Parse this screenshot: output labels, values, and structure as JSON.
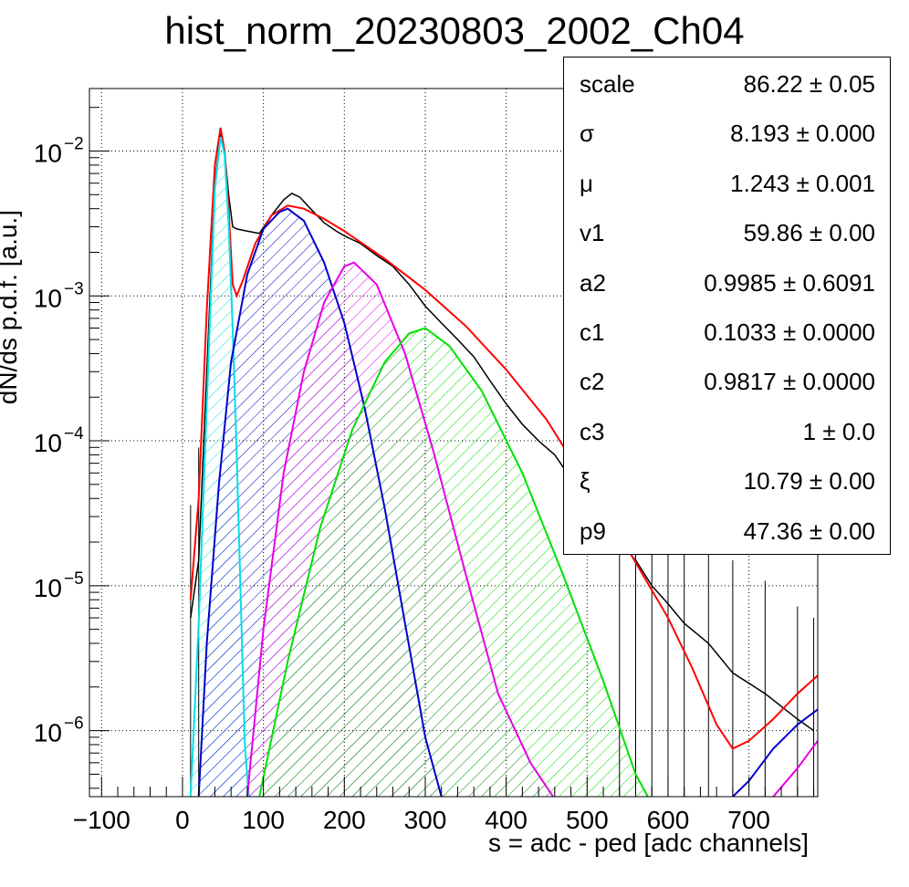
{
  "chart_data": {
    "type": "line",
    "title": "hist_norm_20230803_2002_Ch04",
    "xlabel": "s = adc - ped [adc channels]",
    "ylabel": "dN/ds p.d.f. [a.u.]",
    "xlim": [
      -115,
      785
    ],
    "ylim": [
      3.5e-07,
      0.027
    ],
    "yscale": "log",
    "grid": true,
    "x_ticks": [
      "−100",
      "0",
      "100",
      "200",
      "300",
      "400",
      "500",
      "600",
      "700"
    ],
    "y_ticks": [
      {
        "base": "10",
        "exp": "−2",
        "value": 0.01
      },
      {
        "base": "10",
        "exp": "−3",
        "value": 0.001
      },
      {
        "base": "10",
        "exp": "−4",
        "value": 0.0001
      },
      {
        "base": "10",
        "exp": "−5",
        "value": 1e-05
      },
      {
        "base": "10",
        "exp": "−6",
        "value": 1e-06
      }
    ],
    "series": [
      {
        "role": "data",
        "color": "#000000",
        "points": [
          [
            10,
            6e-06
          ],
          [
            20,
            1.5e-05
          ],
          [
            30,
            0.0003
          ],
          [
            40,
            0.006
          ],
          [
            47,
            0.013
          ],
          [
            52,
            0.01
          ],
          [
            57,
            0.005
          ],
          [
            62,
            0.003
          ],
          [
            67,
            0.0029
          ],
          [
            80,
            0.0028
          ],
          [
            95,
            0.0027
          ],
          [
            110,
            0.0036
          ],
          [
            125,
            0.0046
          ],
          [
            135,
            0.0051
          ],
          [
            145,
            0.0048
          ],
          [
            160,
            0.0039
          ],
          [
            175,
            0.0032
          ],
          [
            190,
            0.0028
          ],
          [
            200,
            0.0026
          ],
          [
            220,
            0.0023
          ],
          [
            240,
            0.0019
          ],
          [
            260,
            0.0016
          ],
          [
            280,
            0.0012
          ],
          [
            300,
            0.00085
          ],
          [
            320,
            0.00065
          ],
          [
            340,
            0.0005
          ],
          [
            360,
            0.00038
          ],
          [
            380,
            0.00026
          ],
          [
            400,
            0.00018
          ],
          [
            420,
            0.00013
          ],
          [
            440,
            0.0001
          ],
          [
            460,
            8e-05
          ],
          [
            480,
            5.5e-05
          ],
          [
            500,
            4e-05
          ],
          [
            520,
            3e-05
          ],
          [
            540,
            2e-05
          ],
          [
            560,
            1.5e-05
          ],
          [
            580,
            1e-05
          ],
          [
            600,
            7.5e-06
          ],
          [
            620,
            5.5e-06
          ],
          [
            650,
            4e-06
          ],
          [
            680,
            2.5e-06
          ],
          [
            720,
            1.8e-06
          ],
          [
            760,
            1.2e-06
          ],
          [
            780,
            1e-06
          ]
        ]
      },
      {
        "role": "total fit",
        "color": "#ff0000",
        "points": [
          [
            10,
            8e-06
          ],
          [
            20,
            4e-05
          ],
          [
            30,
            0.0008
          ],
          [
            40,
            0.008
          ],
          [
            47,
            0.0145
          ],
          [
            52,
            0.01
          ],
          [
            57,
            0.004
          ],
          [
            62,
            0.0012
          ],
          [
            67,
            0.001
          ],
          [
            75,
            0.0013
          ],
          [
            90,
            0.0023
          ],
          [
            110,
            0.0036
          ],
          [
            130,
            0.0042
          ],
          [
            150,
            0.004
          ],
          [
            175,
            0.0034
          ],
          [
            200,
            0.0028
          ],
          [
            250,
            0.0018
          ],
          [
            300,
            0.0011
          ],
          [
            350,
            0.00062
          ],
          [
            400,
            0.00031
          ],
          [
            450,
            0.00014
          ],
          [
            500,
            5e-05
          ],
          [
            550,
            1.8e-05
          ],
          [
            600,
            6e-06
          ],
          [
            630,
            2.7e-06
          ],
          [
            660,
            1.1e-06
          ],
          [
            680,
            7.5e-07
          ],
          [
            700,
            8.5e-07
          ],
          [
            730,
            1.2e-06
          ],
          [
            760,
            1.8e-06
          ],
          [
            785,
            2.4e-06
          ]
        ]
      },
      {
        "role": "peak 0",
        "color": "#00e0e6",
        "fill": true,
        "points": [
          [
            10,
            3e-07
          ],
          [
            20,
            5.5e-06
          ],
          [
            30,
            0.00018
          ],
          [
            40,
            0.0055
          ],
          [
            47,
            0.0125
          ],
          [
            52,
            0.0095
          ],
          [
            57,
            0.0032
          ],
          [
            62,
            0.0006
          ],
          [
            67,
            8e-05
          ],
          [
            72,
            8e-06
          ],
          [
            77,
            8e-07
          ],
          [
            82,
            3e-07
          ]
        ]
      },
      {
        "role": "peak 1",
        "color": "#0000cc",
        "fill": true,
        "points": [
          [
            20,
            3e-07
          ],
          [
            30,
            4e-06
          ],
          [
            45,
            5e-05
          ],
          [
            60,
            0.00035
          ],
          [
            80,
            0.0014
          ],
          [
            100,
            0.0029
          ],
          [
            120,
            0.0038
          ],
          [
            130,
            0.004
          ],
          [
            150,
            0.0033
          ],
          [
            175,
            0.0017
          ],
          [
            200,
            0.00065
          ],
          [
            225,
            0.00017
          ],
          [
            250,
            3.4e-05
          ],
          [
            275,
            5.5e-06
          ],
          [
            300,
            9e-07
          ],
          [
            320,
            3e-07
          ]
        ]
      },
      {
        "role": "peak 2",
        "color": "#e600e6",
        "fill": true,
        "points": [
          [
            80,
            3e-07
          ],
          [
            100,
            5e-06
          ],
          [
            125,
            6e-05
          ],
          [
            150,
            0.0003
          ],
          [
            175,
            0.0009
          ],
          [
            200,
            0.0016
          ],
          [
            212,
            0.0017
          ],
          [
            240,
            0.0012
          ],
          [
            275,
            0.0004
          ],
          [
            310,
            8.5e-05
          ],
          [
            350,
            1.2e-05
          ],
          [
            390,
            1.8e-06
          ],
          [
            430,
            6e-07
          ],
          [
            458,
            3e-07
          ]
        ]
      },
      {
        "role": "peak 3",
        "color": "#00e000",
        "fill": true,
        "points": [
          [
            95,
            3e-07
          ],
          [
            130,
            3e-06
          ],
          [
            170,
            2.5e-05
          ],
          [
            210,
            0.00012
          ],
          [
            250,
            0.00035
          ],
          [
            280,
            0.00055
          ],
          [
            300,
            0.0006
          ],
          [
            330,
            0.00045
          ],
          [
            370,
            0.00022
          ],
          [
            420,
            6e-05
          ],
          [
            470,
            1.2e-05
          ],
          [
            520,
            2.2e-06
          ],
          [
            560,
            5e-07
          ],
          [
            575,
            3e-07
          ]
        ]
      },
      {
        "role": "tail blue",
        "color": "#0000cc",
        "fill": false,
        "points": [
          [
            680,
            3e-07
          ],
          [
            700,
            4.5e-07
          ],
          [
            730,
            7.5e-07
          ],
          [
            760,
            1.1e-06
          ],
          [
            785,
            1.4e-06
          ]
        ]
      },
      {
        "role": "tail magenta",
        "color": "#e600e6",
        "fill": false,
        "points": [
          [
            730,
            3e-07
          ],
          [
            760,
            5.5e-07
          ],
          [
            785,
            8.5e-07
          ]
        ]
      }
    ]
  },
  "stats": [
    {
      "name": "scale",
      "value": "86.22 ± 0.05"
    },
    {
      "name": "σ",
      "value": "8.193 ± 0.000"
    },
    {
      "name": "μ",
      "value": "1.243 ± 0.001"
    },
    {
      "name": "v1",
      "value": "59.86 ± 0.00"
    },
    {
      "name": "a2",
      "value": "0.9985 ± 0.6091"
    },
    {
      "name": "c1",
      "value": "0.1033 ± 0.0000"
    },
    {
      "name": "c2",
      "value": "0.9817 ± 0.0000"
    },
    {
      "name": "c3",
      "value": "1 ± 0.0"
    },
    {
      "name": "ξ",
      "value": "10.79 ± 0.00"
    },
    {
      "name": "p9",
      "value": "47.36 ± 0.00"
    }
  ]
}
